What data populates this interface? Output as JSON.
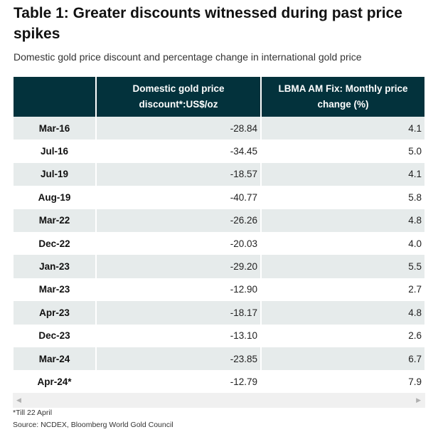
{
  "title": "Table 1: Greater discounts witnessed during past price spikes",
  "subtitle": "Domestic gold price discount and percentage change in international gold price",
  "table": {
    "headers": [
      "",
      "Domestic gold price discount*:US$/oz",
      "LBMA AM Fix: Monthly price change (%)"
    ],
    "rows": [
      {
        "period": "Mar-16",
        "discount": "-28.84",
        "change": "4.1"
      },
      {
        "period": "Jul-16",
        "discount": "-34.45",
        "change": "5.0"
      },
      {
        "period": "Jul-19",
        "discount": "-18.57",
        "change": "4.1"
      },
      {
        "period": "Aug-19",
        "discount": "-40.77",
        "change": "5.8"
      },
      {
        "period": "Mar-22",
        "discount": "-26.26",
        "change": "4.8"
      },
      {
        "period": "Dec-22",
        "discount": "-20.03",
        "change": "4.0"
      },
      {
        "period": "Jan-23",
        "discount": "-29.20",
        "change": "5.5"
      },
      {
        "period": "Mar-23",
        "discount": "-12.90",
        "change": "2.7"
      },
      {
        "period": "Apr-23",
        "discount": "-18.17",
        "change": "4.8"
      },
      {
        "period": "Dec-23",
        "discount": "-13.10",
        "change": "2.6"
      },
      {
        "period": "Mar-24",
        "discount": "-23.85",
        "change": "6.7"
      },
      {
        "period": "Apr-24*",
        "discount": "-12.79",
        "change": "7.9"
      }
    ]
  },
  "scrollbar": {
    "left_icon": "scroll-left-arrow",
    "right_icon": "scroll-right-arrow",
    "left_glyph": "◀",
    "right_glyph": "▶"
  },
  "footnote": "*Till 22 April",
  "source": "Source: NCDEX, Bloomberg World Gold Council",
  "colors": {
    "header_bg": "#03323c",
    "stripe_bg": "#e6ebeb"
  }
}
